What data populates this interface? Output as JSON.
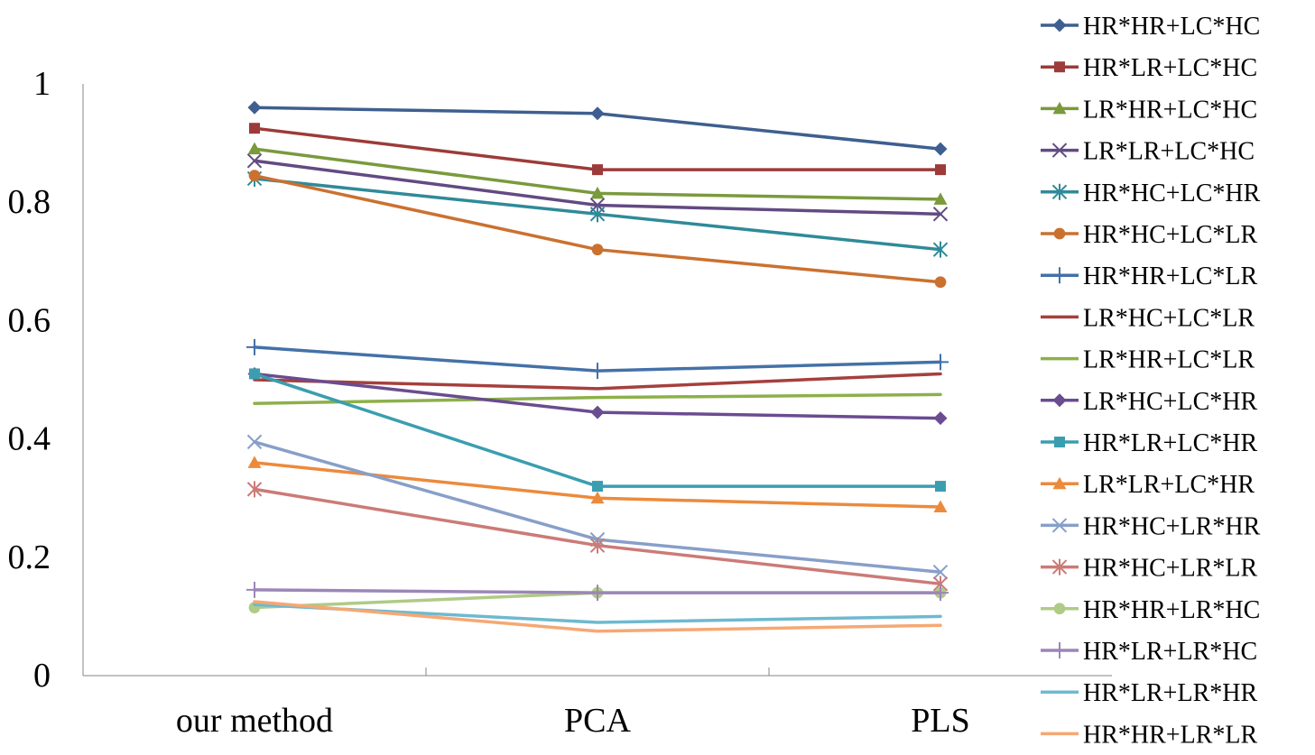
{
  "chart_data": {
    "type": "line",
    "title": "",
    "xlabel": "",
    "ylabel": "",
    "categories": [
      "our method",
      "PCA",
      "PLS"
    ],
    "ylim": [
      0,
      1
    ],
    "yticks": [
      0,
      0.2,
      0.4,
      0.6,
      0.8,
      1
    ],
    "ytick_labels": [
      "0",
      "0.2",
      "0.4",
      "0.6",
      "0.8",
      "1"
    ],
    "grid": false,
    "legend_position": "right",
    "series": [
      {
        "name": "HR*HR+LC*HC",
        "values": [
          0.96,
          0.95,
          0.89
        ],
        "color": "#3e5f8f",
        "marker": "diamond"
      },
      {
        "name": "HR*LR+LC*HC",
        "values": [
          0.925,
          0.855,
          0.855
        ],
        "color": "#9c3b39",
        "marker": "square"
      },
      {
        "name": "LR*HR+LC*HC",
        "values": [
          0.89,
          0.815,
          0.805
        ],
        "color": "#7a9a3c",
        "marker": "triangle"
      },
      {
        "name": "LR*LR+LC*HC",
        "values": [
          0.87,
          0.795,
          0.78
        ],
        "color": "#624a82",
        "marker": "x"
      },
      {
        "name": "HR*HC+LC*HR",
        "values": [
          0.84,
          0.78,
          0.72
        ],
        "color": "#2f8a99",
        "marker": "asterisk"
      },
      {
        "name": "HR*HC+LC*LR",
        "values": [
          0.845,
          0.72,
          0.665
        ],
        "color": "#cb7130",
        "marker": "circle"
      },
      {
        "name": "HR*HR+LC*LR",
        "values": [
          0.555,
          0.515,
          0.53
        ],
        "color": "#4471a7",
        "marker": "plus"
      },
      {
        "name": "LR*HC+LC*LR",
        "values": [
          0.5,
          0.485,
          0.51
        ],
        "color": "#a5403d",
        "marker": "none"
      },
      {
        "name": "LR*HR+LC*LR",
        "values": [
          0.46,
          0.47,
          0.475
        ],
        "color": "#8db04a",
        "marker": "none"
      },
      {
        "name": "LR*HC+LC*HR",
        "values": [
          0.51,
          0.445,
          0.435
        ],
        "color": "#6a4c90",
        "marker": "diamond"
      },
      {
        "name": "HR*LR+LC*HR",
        "values": [
          0.51,
          0.32,
          0.32
        ],
        "color": "#3a9eb0",
        "marker": "square"
      },
      {
        "name": "LR*LR+LC*HR",
        "values": [
          0.36,
          0.3,
          0.285
        ],
        "color": "#ec8a3c",
        "marker": "triangle"
      },
      {
        "name": "HR*HC+LR*HR",
        "values": [
          0.395,
          0.23,
          0.175
        ],
        "color": "#879fc9",
        "marker": "x"
      },
      {
        "name": "HR*HC+LR*LR",
        "values": [
          0.315,
          0.22,
          0.155
        ],
        "color": "#cb7b77",
        "marker": "asterisk"
      },
      {
        "name": "HR*HR+LR*HC",
        "values": [
          0.115,
          0.14,
          0.14
        ],
        "color": "#afcb86",
        "marker": "circle"
      },
      {
        "name": "HR*LR+LR*HC",
        "values": [
          0.145,
          0.14,
          0.14
        ],
        "color": "#9c86b8",
        "marker": "plus"
      },
      {
        "name": "HR*LR+LR*HR",
        "values": [
          0.12,
          0.09,
          0.1
        ],
        "color": "#6fb9cf",
        "marker": "none"
      },
      {
        "name": "HR*HR+LR*LR",
        "values": [
          0.125,
          0.075,
          0.085
        ],
        "color": "#f5a874",
        "marker": "none"
      }
    ]
  }
}
